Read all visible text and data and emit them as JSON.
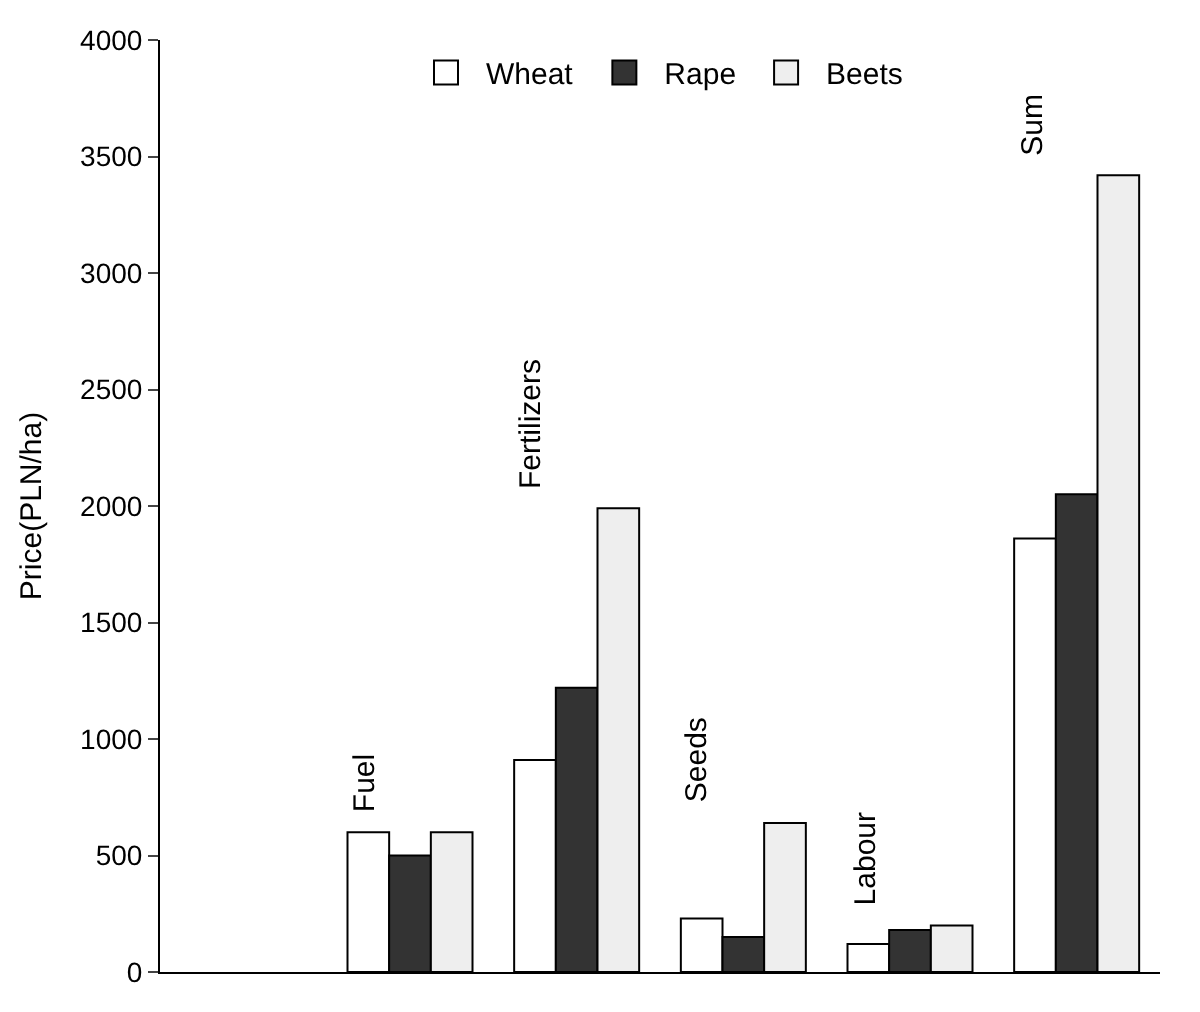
{
  "chart_data": {
    "type": "bar",
    "ylabel": "Price(PLN/ha)",
    "categories": [
      null,
      "Fuel",
      "Fertilizers",
      "Seeds",
      "Labour",
      "Sum"
    ],
    "series": [
      {
        "name": "Wheat",
        "color": "#ffffff",
        "values": [
          null,
          600,
          910,
          230,
          120,
          1860
        ]
      },
      {
        "name": "Rape",
        "color": "#333333",
        "values": [
          null,
          500,
          1220,
          150,
          180,
          2050
        ]
      },
      {
        "name": "Beets",
        "color": "#eeeeee",
        "values": [
          null,
          600,
          1990,
          640,
          200,
          3420
        ]
      }
    ],
    "ylim": [
      0,
      4000
    ],
    "yticks": [
      0,
      500,
      1000,
      1500,
      2000,
      2500,
      3000,
      3500,
      4000
    ],
    "legend": "top"
  }
}
